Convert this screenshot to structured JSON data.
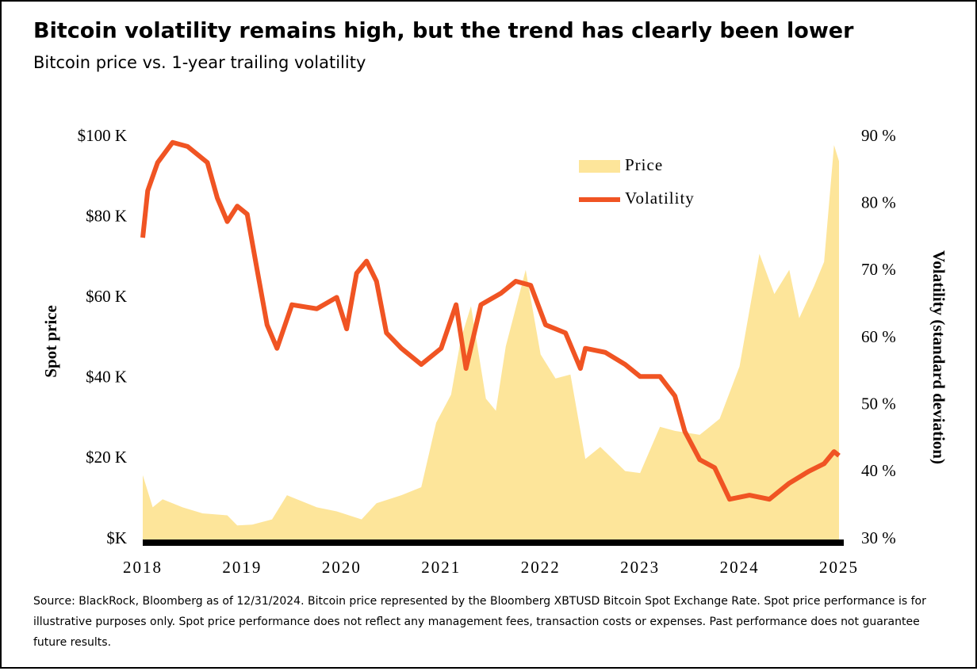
{
  "chart_data": {
    "type": "area-line",
    "title": "Bitcoin volatility remains high, but the trend has clearly been lower",
    "subtitle": "Bitcoin price vs. 1-year trailing volatility",
    "ylabel": "Spot price",
    "y2label": "Volatility (standard deviation)",
    "footnote": "Source: BlackRock, Bloomberg as of 12/31/2024. Bitcoin price represented by the Bloomberg XBTUSD Bitcoin Spot Exchange Rate. Spot price performance is for illustrative purposes only. Spot price performance does not reflect any management fees, transaction costs or expenses. Past performance does not guarantee future results.",
    "legend": "upper right",
    "xlim": [
      2018,
      2025
    ],
    "xticks": [
      2018,
      2019,
      2020,
      2021,
      2022,
      2023,
      2024,
      2025
    ],
    "ylim": [
      0,
      100
    ],
    "yticks": [
      {
        "value": 0,
        "label": "$K"
      },
      {
        "value": 20,
        "label": "$20 K"
      },
      {
        "value": 40,
        "label": "$40 K"
      },
      {
        "value": 60,
        "label": "$60 K"
      },
      {
        "value": 80,
        "label": "$80 K"
      },
      {
        "value": 100,
        "label": "$100 K"
      }
    ],
    "y2lim": [
      30,
      90
    ],
    "y2ticks": [
      {
        "value": 30,
        "label": "30 %"
      },
      {
        "value": 40,
        "label": "40 %"
      },
      {
        "value": 50,
        "label": "50 %"
      },
      {
        "value": 60,
        "label": "60 %"
      },
      {
        "value": 70,
        "label": "70 %"
      },
      {
        "value": 80,
        "label": "80 %"
      },
      {
        "value": 90,
        "label": "90 %"
      }
    ],
    "series": [
      {
        "name": "Price",
        "color": "#fde59a",
        "kind": "area",
        "x": [
          2018.0,
          2018.1,
          2018.2,
          2018.4,
          2018.6,
          2018.85,
          2018.95,
          2019.1,
          2019.3,
          2019.45,
          2019.55,
          2019.75,
          2019.95,
          2020.2,
          2020.35,
          2020.6,
          2020.8,
          2020.95,
          2021.1,
          2021.2,
          2021.3,
          2021.45,
          2021.55,
          2021.65,
          2021.85,
          2022.0,
          2022.15,
          2022.3,
          2022.45,
          2022.6,
          2022.85,
          2023.0,
          2023.2,
          2023.35,
          2023.6,
          2023.8,
          2024.0,
          2024.2,
          2024.35,
          2024.5,
          2024.6,
          2024.75,
          2024.85,
          2024.95,
          2025.0
        ],
        "values": [
          16,
          8,
          10,
          8,
          6.5,
          6,
          3.5,
          3.7,
          5,
          11,
          10,
          8,
          7,
          5,
          9,
          11,
          13,
          29,
          36,
          50,
          58,
          35,
          32,
          48,
          67,
          46,
          40,
          41,
          20,
          23,
          17,
          16.5,
          28,
          27,
          26,
          30,
          43,
          71,
          61,
          67,
          55,
          63,
          69,
          98,
          94
        ]
      },
      {
        "name": "Volatility",
        "color": "#f05423",
        "kind": "line",
        "axis": "y2",
        "x": [
          2018.0,
          2018.05,
          2018.15,
          2018.3,
          2018.45,
          2018.65,
          2018.75,
          2018.85,
          2018.95,
          2019.05,
          2019.15,
          2019.25,
          2019.35,
          2019.5,
          2019.75,
          2019.95,
          2020.05,
          2020.15,
          2020.25,
          2020.35,
          2020.45,
          2020.6,
          2020.8,
          2021.0,
          2021.15,
          2021.25,
          2021.4,
          2021.6,
          2021.75,
          2021.9,
          2022.05,
          2022.25,
          2022.4,
          2022.45,
          2022.65,
          2022.85,
          2023.0,
          2023.2,
          2023.35,
          2023.45,
          2023.6,
          2023.75,
          2023.9,
          2024.1,
          2024.3,
          2024.5,
          2024.7,
          2024.85,
          2024.95,
          2025.0
        ],
        "values": [
          75,
          82,
          86.2,
          89.2,
          88.6,
          86.2,
          80.9,
          77.4,
          79.7,
          78.5,
          70.2,
          62,
          58.5,
          65,
          64.4,
          66.1,
          61.4,
          69.7,
          71.5,
          68.5,
          60.8,
          58.5,
          56.1,
          58.5,
          65,
          55.5,
          65,
          66.7,
          68.5,
          67.9,
          62,
          60.8,
          55.5,
          58.5,
          57.9,
          56.1,
          54.3,
          54.3,
          51.4,
          46.1,
          41.9,
          40.7,
          36,
          36.6,
          36,
          38.4,
          40.2,
          41.3,
          43.1,
          42.5
        ]
      }
    ]
  }
}
